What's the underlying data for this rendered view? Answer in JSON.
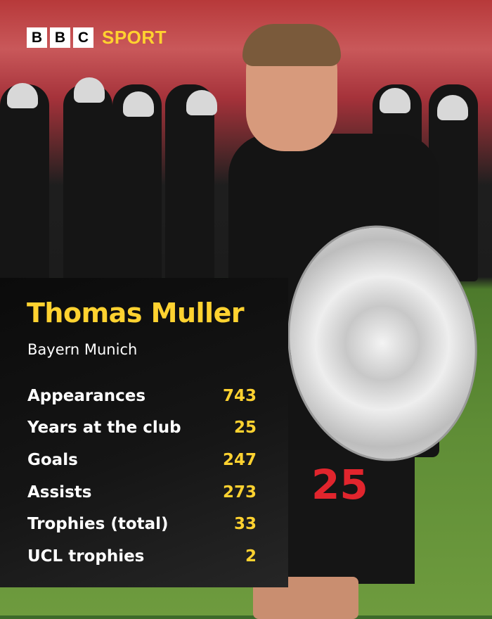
{
  "brand": {
    "letters": [
      "B",
      "B",
      "C"
    ],
    "sport": "SPORT",
    "accent": "#ffd230"
  },
  "player": {
    "name": "Thomas Muller",
    "club": "Bayern Munich",
    "shirt_number": "25"
  },
  "stats": [
    {
      "label": "Appearances",
      "value": "743"
    },
    {
      "label": "Years at the club",
      "value": "25"
    },
    {
      "label": "Goals",
      "value": "247"
    },
    {
      "label": "Assists",
      "value": "273"
    },
    {
      "label": "Trophies (total)",
      "value": "33"
    },
    {
      "label": "UCL trophies",
      "value": "2"
    }
  ]
}
